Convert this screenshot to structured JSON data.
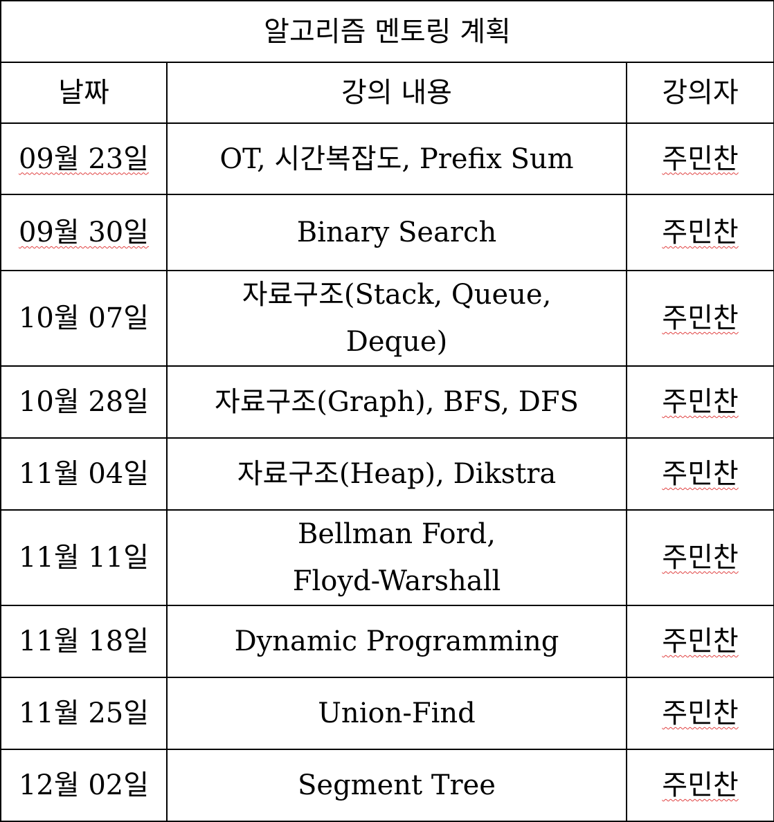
{
  "title": "알고리즘 멘토링 계획",
  "headers": {
    "date": "날짜",
    "content": "강의 내용",
    "lecturer": "강의자"
  },
  "rows": [
    {
      "date": "09월 23일",
      "content": "OT, 시간복잡도, Prefix Sum",
      "lecturer": "주민찬"
    },
    {
      "date": "09월 30일",
      "content": "Binary Search",
      "lecturer": "주민찬"
    },
    {
      "date": "10월 07일",
      "content": "자료구조(Stack, Queue, Deque)",
      "lecturer": "주민찬"
    },
    {
      "date": "10월 28일",
      "content": "자료구조(Graph), BFS, DFS",
      "lecturer": "주민찬"
    },
    {
      "date": "11월 04일",
      "content": "자료구조(Heap), Dikstra",
      "lecturer": "주민찬"
    },
    {
      "date": "11월 11일",
      "content": "Bellman Ford, Floyd-Warshall",
      "lecturer": "주민찬"
    },
    {
      "date": "11월 18일",
      "content": "Dynamic Programming",
      "lecturer": "주민찬"
    },
    {
      "date": "11월 25일",
      "content": "Union-Find",
      "lecturer": "주민찬"
    },
    {
      "date": "12월 02일",
      "content": "Segment Tree",
      "lecturer": "주민찬"
    }
  ]
}
